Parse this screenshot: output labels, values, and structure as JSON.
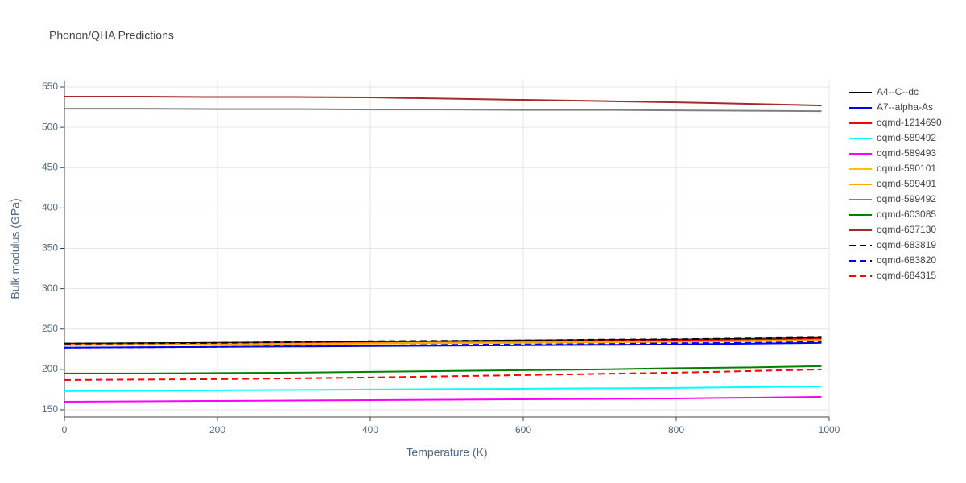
{
  "chart_data": {
    "type": "line",
    "title": "Phonon/QHA Predictions",
    "x_label": "Temperature (K)",
    "y_label": "Bulk modulus (GPa)",
    "x": [
      0,
      100,
      200,
      300,
      400,
      500,
      600,
      700,
      800,
      900,
      990
    ],
    "xlim": [
      0,
      1000
    ],
    "xticks": [
      0,
      200,
      400,
      600,
      800,
      1000
    ],
    "ylim": [
      141,
      558
    ],
    "yticks": [
      150,
      200,
      250,
      300,
      350,
      400,
      450,
      500,
      550
    ],
    "grid": true,
    "legend": "right",
    "series": [
      {
        "name": "A4--C--dc",
        "color": "#000000",
        "dash": "solid",
        "values": [
          232,
          232.5,
          233,
          233.5,
          234,
          235,
          236,
          236.5,
          237,
          238,
          239
        ]
      },
      {
        "name": "A7--alpha-As",
        "color": "#0000ff",
        "dash": "solid",
        "values": [
          227,
          227.5,
          228,
          228.5,
          229,
          229.5,
          230,
          230.5,
          231,
          232,
          233
        ]
      },
      {
        "name": "oqmd-1214690",
        "color": "#ff0000",
        "dash": "solid",
        "values": [
          231,
          231.5,
          232,
          232.5,
          233,
          234,
          235,
          235.5,
          236,
          237,
          238
        ]
      },
      {
        "name": "oqmd-589492",
        "color": "#00ffff",
        "dash": "solid",
        "values": [
          173,
          173.5,
          174,
          174.5,
          175,
          175.5,
          176,
          176.5,
          177,
          178,
          179
        ]
      },
      {
        "name": "oqmd-589493",
        "color": "#ff00ff",
        "dash": "solid",
        "values": [
          160,
          160.5,
          161,
          161.5,
          162,
          162.5,
          163,
          163.5,
          164,
          165,
          166
        ]
      },
      {
        "name": "oqmd-590101",
        "color": "#ffbf00",
        "dash": "solid",
        "values": [
          230,
          230.5,
          231,
          231.5,
          232,
          232.5,
          233,
          233.5,
          234,
          235,
          236
        ]
      },
      {
        "name": "oqmd-599491",
        "color": "#ffa500",
        "dash": "solid",
        "values": [
          230.5,
          231,
          231.5,
          232,
          232.5,
          233,
          233.5,
          234,
          234.5,
          235.5,
          236.5
        ]
      },
      {
        "name": "oqmd-599492",
        "color": "#808080",
        "dash": "solid",
        "values": [
          523,
          523,
          522.5,
          522.5,
          522,
          522,
          521.5,
          521.5,
          521,
          520.5,
          520
        ]
      },
      {
        "name": "oqmd-603085",
        "color": "#008000",
        "dash": "solid",
        "values": [
          195,
          195,
          195.5,
          196,
          197,
          198,
          199,
          200,
          201.5,
          202.5,
          204
        ]
      },
      {
        "name": "oqmd-637130",
        "color": "#a52a2a",
        "dash": "solid",
        "values": [
          538,
          538,
          537.5,
          537.5,
          537,
          535.5,
          534,
          532.5,
          531,
          529,
          527
        ]
      },
      {
        "name": "oqmd-683819",
        "color": "#000000",
        "dash": "dash",
        "values": [
          232,
          232.5,
          233,
          234,
          235,
          235.5,
          236,
          237,
          237.5,
          238.5,
          239.5
        ]
      },
      {
        "name": "oqmd-683820",
        "color": "#0000ff",
        "dash": "dash",
        "values": [
          227,
          227.5,
          228,
          229,
          229.5,
          230.5,
          231,
          231.5,
          232.5,
          233,
          234
        ]
      },
      {
        "name": "oqmd-684315",
        "color": "#ff0000",
        "dash": "dash",
        "values": [
          187,
          187.5,
          188,
          189,
          190,
          191.5,
          193,
          194.5,
          196,
          198,
          200
        ]
      }
    ]
  }
}
